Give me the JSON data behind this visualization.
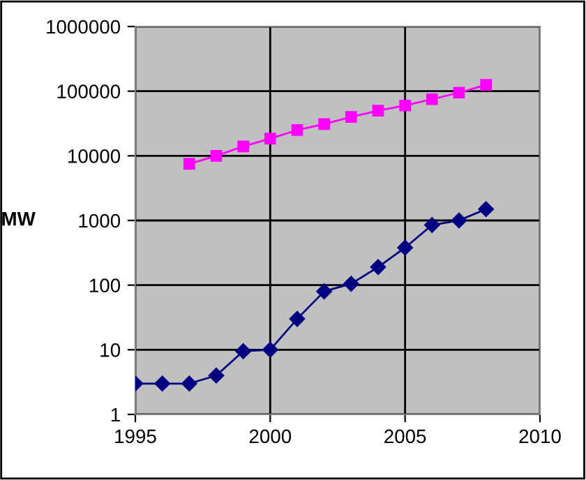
{
  "chart_data": {
    "type": "line",
    "ylabel": "MW",
    "log": "y",
    "grid": true,
    "legend": false,
    "xlim": [
      1995,
      2010
    ],
    "xticks": [
      1995,
      2000,
      2005,
      2010
    ],
    "ylim": [
      1,
      1000000
    ],
    "yticks": [
      1,
      10,
      100,
      1000,
      10000,
      100000,
      1000000
    ],
    "series": [
      {
        "color": "#000080",
        "marker": "diamond",
        "x": [
          1995,
          1996,
          1997,
          1998,
          1999,
          2000,
          2001,
          2002,
          2003,
          2004,
          2005,
          2006,
          2007,
          2008
        ],
        "values": [
          3,
          3,
          3,
          4,
          9.5,
          10,
          30,
          80,
          105,
          190,
          380,
          850,
          1000,
          1500
        ]
      },
      {
        "color": "#ff00ff",
        "marker": "square",
        "x": [
          1997,
          1998,
          1999,
          2000,
          2001,
          2002,
          2003,
          2004,
          2005,
          2006,
          2007,
          2008
        ],
        "values": [
          7500,
          10000,
          14000,
          18500,
          25000,
          31000,
          40000,
          50000,
          60000,
          75000,
          95000,
          125000
        ]
      }
    ]
  }
}
